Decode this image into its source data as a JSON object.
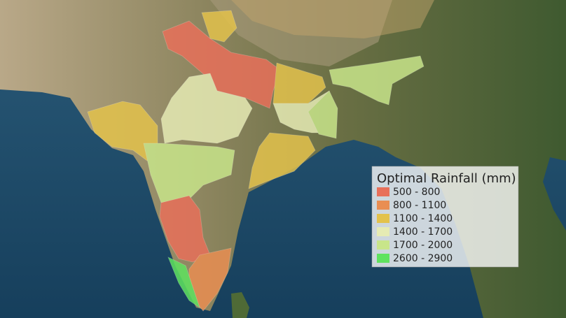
{
  "legend": {
    "title": "Optimal Rainfall (mm)",
    "items": [
      {
        "label": "500 - 800",
        "color": "#e8705a"
      },
      {
        "label": "800 - 1100",
        "color": "#e98e52"
      },
      {
        "label": "1100 - 1400",
        "color": "#e3c24c"
      },
      {
        "label": "1400 - 1700",
        "color": "#e6ebb4"
      },
      {
        "label": "1700 - 2000",
        "color": "#c8e58a"
      },
      {
        "label": "2600 - 2900",
        "color": "#5fe35f"
      }
    ]
  }
}
